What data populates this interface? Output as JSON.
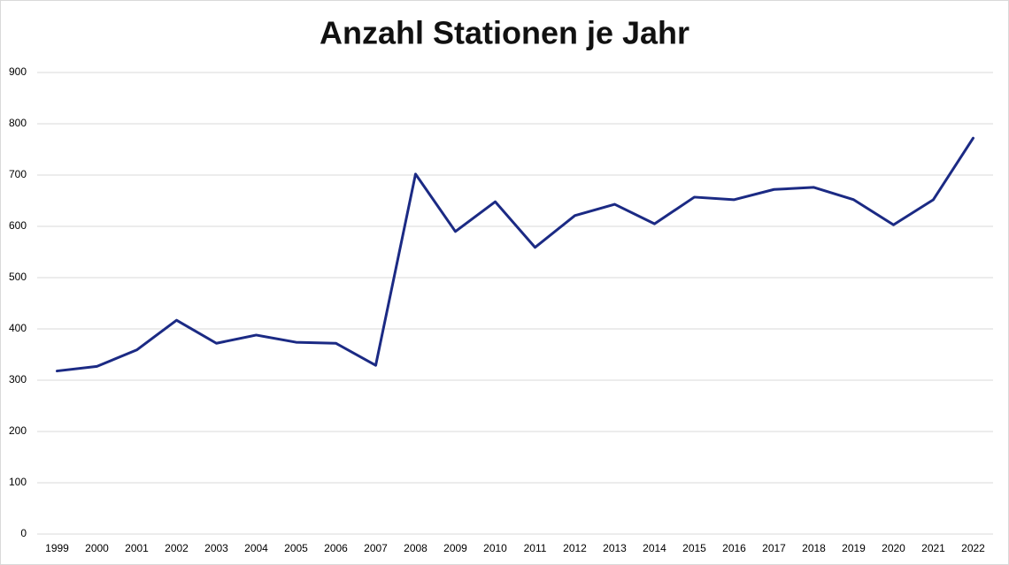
{
  "chart_data": {
    "type": "line",
    "title": "Anzahl Stationen je Jahr",
    "categories": [
      "1999",
      "2000",
      "2001",
      "2002",
      "2003",
      "2004",
      "2005",
      "2006",
      "2007",
      "2008",
      "2009",
      "2010",
      "2011",
      "2012",
      "2013",
      "2014",
      "2015",
      "2016",
      "2017",
      "2018",
      "2019",
      "2020",
      "2021",
      "2022"
    ],
    "series": [
      {
        "name": "Anzahl Stationen",
        "color": "#1b2a84",
        "values": [
          318,
          327,
          359,
          417,
          372,
          388,
          374,
          372,
          329,
          702,
          590,
          648,
          559,
          621,
          643,
          605,
          657,
          652,
          672,
          676,
          652,
          603,
          652,
          772
        ]
      }
    ],
    "ylim": [
      0,
      900
    ],
    "yticks": [
      0,
      100,
      200,
      300,
      400,
      500,
      600,
      700,
      800,
      900
    ],
    "grid": true,
    "legend": false
  }
}
